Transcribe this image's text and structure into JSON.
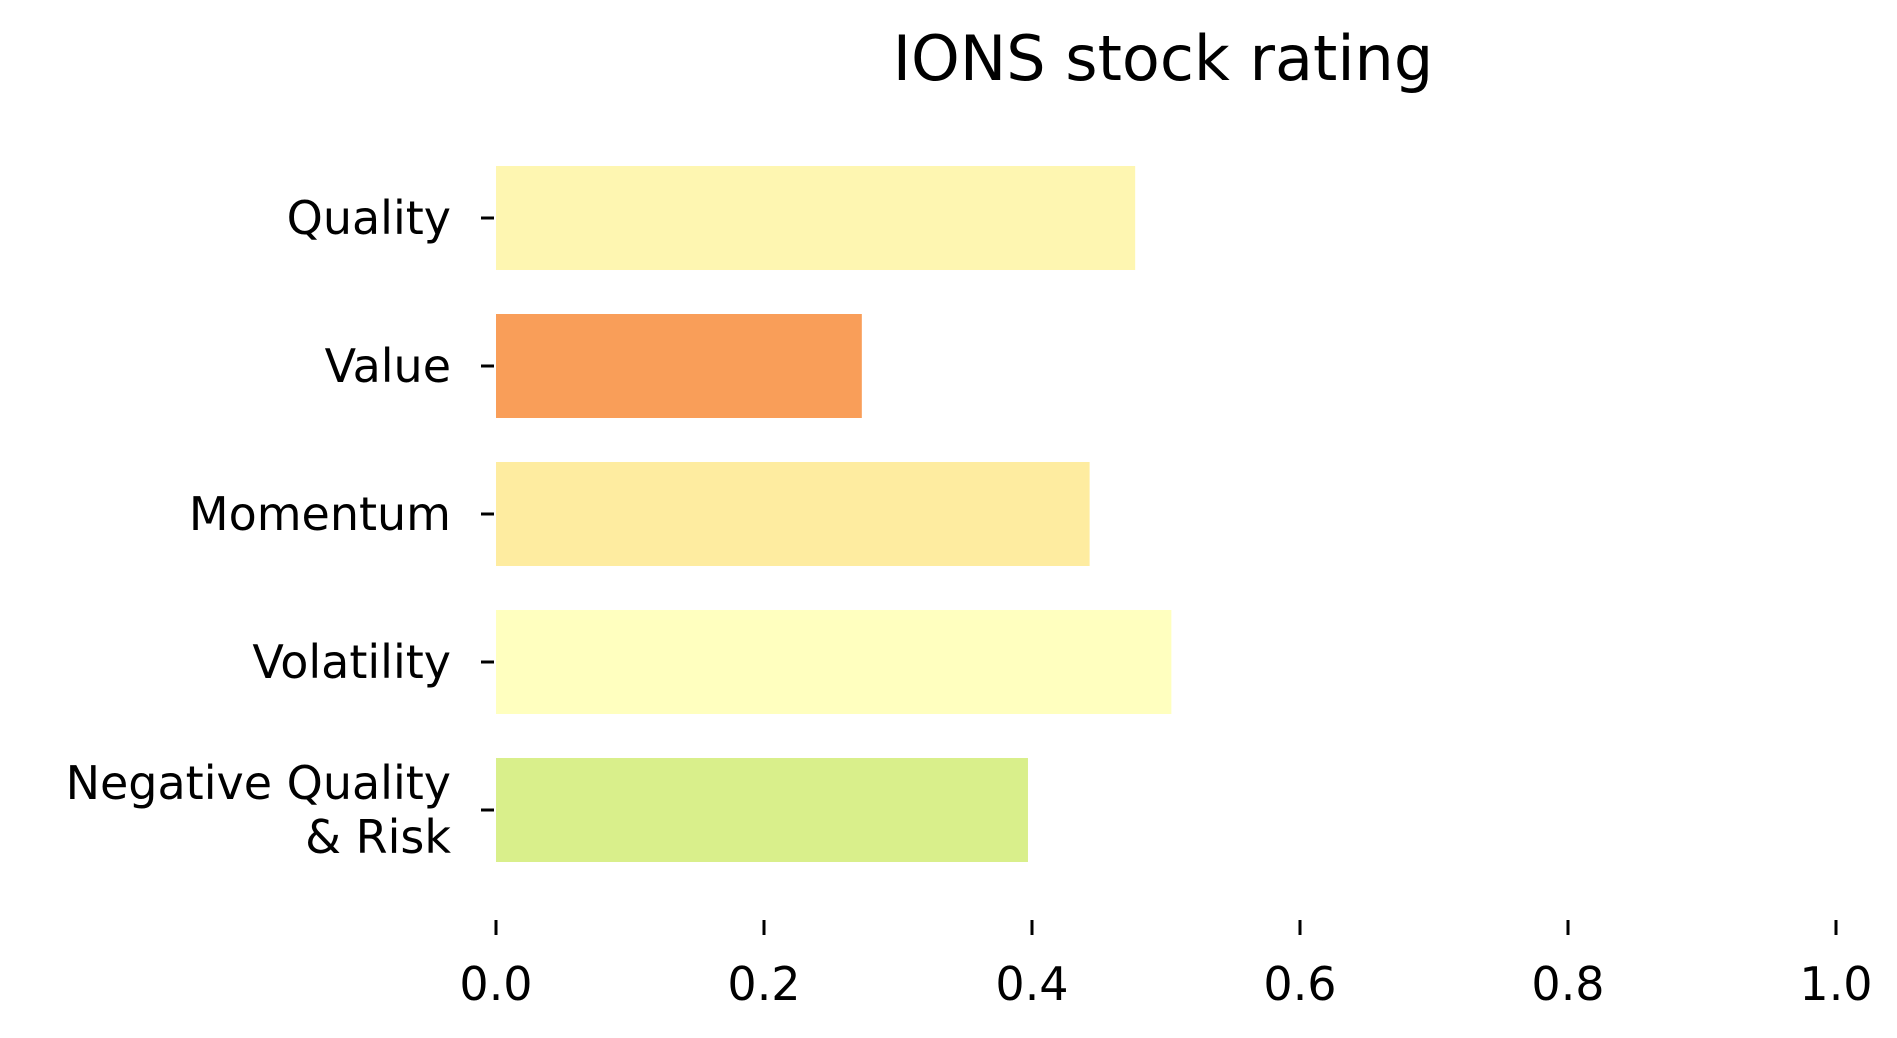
{
  "chart_data": {
    "type": "bar",
    "orientation": "horizontal",
    "title": "IONS stock rating",
    "xlabel": "",
    "ylabel": "",
    "categories": [
      {
        "name": "Quality",
        "lines": [
          "Quality"
        ]
      },
      {
        "name": "Value",
        "lines": [
          "Value"
        ]
      },
      {
        "name": "Momentum",
        "lines": [
          "Momentum"
        ]
      },
      {
        "name": "Volatility",
        "lines": [
          "Volatility"
        ]
      },
      {
        "name": "Negative Quality & Risk",
        "lines": [
          "Negative Quality",
          "& Risk"
        ]
      }
    ],
    "values": [
      0.477,
      0.273,
      0.443,
      0.504,
      0.397
    ],
    "colors": [
      "#fef6b1",
      "#f99e59",
      "#feeca0",
      "#ffffbf",
      "#d9ef8b"
    ],
    "xlim": [
      0.0,
      1.0
    ],
    "xticks": [
      "0.0",
      "0.2",
      "0.4",
      "0.6",
      "0.8",
      "1.0"
    ],
    "grid": false,
    "legend": "none"
  }
}
